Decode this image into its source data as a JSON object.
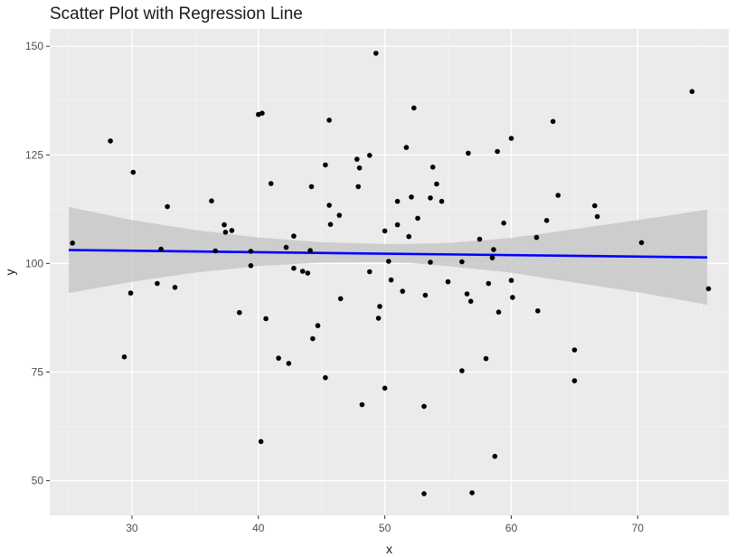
{
  "chart_data": {
    "type": "scatter",
    "title": "Scatter Plot with Regression Line",
    "xlabel": "x",
    "ylabel": "y",
    "xlim": [
      23.5,
      77.2
    ],
    "ylim": [
      42.0,
      154.0
    ],
    "x_ticks": [
      30,
      40,
      50,
      60,
      70
    ],
    "y_ticks": [
      50,
      75,
      100,
      125,
      150
    ],
    "grid": true,
    "legend": "none",
    "colors": {
      "panel_background": "#ebebeb",
      "grid_major": "#ffffff",
      "grid_minor": "#f5f5f5",
      "points": "#000000",
      "regression_line": "#0000ff",
      "confidence_band": "#c8c8c8"
    },
    "points": [
      {
        "x": 25.3,
        "y": 104.7
      },
      {
        "x": 28.3,
        "y": 128.2
      },
      {
        "x": 29.4,
        "y": 78.5
      },
      {
        "x": 29.9,
        "y": 93.2
      },
      {
        "x": 30.1,
        "y": 121.0
      },
      {
        "x": 32.0,
        "y": 95.4
      },
      {
        "x": 32.3,
        "y": 103.3
      },
      {
        "x": 32.8,
        "y": 113.1
      },
      {
        "x": 33.4,
        "y": 94.5
      },
      {
        "x": 36.3,
        "y": 114.4
      },
      {
        "x": 36.6,
        "y": 102.9
      },
      {
        "x": 37.3,
        "y": 108.9
      },
      {
        "x": 37.4,
        "y": 107.2
      },
      {
        "x": 37.9,
        "y": 107.6
      },
      {
        "x": 38.5,
        "y": 88.7
      },
      {
        "x": 39.4,
        "y": 99.5
      },
      {
        "x": 39.4,
        "y": 102.8
      },
      {
        "x": 40.0,
        "y": 134.3
      },
      {
        "x": 40.2,
        "y": 59.0
      },
      {
        "x": 40.3,
        "y": 134.6
      },
      {
        "x": 40.6,
        "y": 87.3
      },
      {
        "x": 41.0,
        "y": 118.4
      },
      {
        "x": 41.6,
        "y": 78.2
      },
      {
        "x": 42.2,
        "y": 103.7
      },
      {
        "x": 42.4,
        "y": 77.0
      },
      {
        "x": 42.8,
        "y": 106.3
      },
      {
        "x": 42.8,
        "y": 98.9
      },
      {
        "x": 43.5,
        "y": 98.2
      },
      {
        "x": 43.9,
        "y": 97.8
      },
      {
        "x": 44.1,
        "y": 103.0
      },
      {
        "x": 44.2,
        "y": 117.7
      },
      {
        "x": 44.3,
        "y": 82.7
      },
      {
        "x": 44.7,
        "y": 85.7
      },
      {
        "x": 45.3,
        "y": 122.7
      },
      {
        "x": 45.3,
        "y": 73.7
      },
      {
        "x": 45.6,
        "y": 133.0
      },
      {
        "x": 45.6,
        "y": 113.4
      },
      {
        "x": 45.7,
        "y": 109.0
      },
      {
        "x": 46.4,
        "y": 111.1
      },
      {
        "x": 46.5,
        "y": 91.9
      },
      {
        "x": 47.8,
        "y": 124.0
      },
      {
        "x": 47.9,
        "y": 117.7
      },
      {
        "x": 48.0,
        "y": 122.0
      },
      {
        "x": 48.2,
        "y": 67.5
      },
      {
        "x": 48.8,
        "y": 98.1
      },
      {
        "x": 48.8,
        "y": 124.9
      },
      {
        "x": 49.3,
        "y": 148.4
      },
      {
        "x": 49.5,
        "y": 87.4
      },
      {
        "x": 49.6,
        "y": 90.1
      },
      {
        "x": 50.0,
        "y": 107.5
      },
      {
        "x": 50.0,
        "y": 71.3
      },
      {
        "x": 50.3,
        "y": 100.5
      },
      {
        "x": 50.5,
        "y": 96.2
      },
      {
        "x": 51.0,
        "y": 108.9
      },
      {
        "x": 51.0,
        "y": 114.3
      },
      {
        "x": 51.4,
        "y": 93.6
      },
      {
        "x": 51.7,
        "y": 126.7
      },
      {
        "x": 51.9,
        "y": 106.2
      },
      {
        "x": 52.1,
        "y": 115.3
      },
      {
        "x": 52.3,
        "y": 135.8
      },
      {
        "x": 52.6,
        "y": 110.4
      },
      {
        "x": 53.1,
        "y": 67.1
      },
      {
        "x": 53.1,
        "y": 47.0
      },
      {
        "x": 53.2,
        "y": 92.7
      },
      {
        "x": 53.6,
        "y": 115.1
      },
      {
        "x": 53.6,
        "y": 100.3
      },
      {
        "x": 53.8,
        "y": 122.2
      },
      {
        "x": 54.1,
        "y": 118.3
      },
      {
        "x": 54.5,
        "y": 114.3
      },
      {
        "x": 55.0,
        "y": 95.8
      },
      {
        "x": 56.1,
        "y": 75.3
      },
      {
        "x": 56.1,
        "y": 100.4
      },
      {
        "x": 56.5,
        "y": 93.0
      },
      {
        "x": 56.6,
        "y": 125.4
      },
      {
        "x": 56.8,
        "y": 91.3
      },
      {
        "x": 56.9,
        "y": 47.2
      },
      {
        "x": 57.5,
        "y": 105.6
      },
      {
        "x": 58.0,
        "y": 78.1
      },
      {
        "x": 58.2,
        "y": 95.4
      },
      {
        "x": 58.5,
        "y": 101.3
      },
      {
        "x": 58.6,
        "y": 103.2
      },
      {
        "x": 58.7,
        "y": 55.6
      },
      {
        "x": 58.9,
        "y": 125.8
      },
      {
        "x": 59.0,
        "y": 88.8
      },
      {
        "x": 59.4,
        "y": 109.3
      },
      {
        "x": 60.0,
        "y": 128.8
      },
      {
        "x": 60.0,
        "y": 96.1
      },
      {
        "x": 60.1,
        "y": 92.2
      },
      {
        "x": 62.0,
        "y": 106.0
      },
      {
        "x": 62.1,
        "y": 89.1
      },
      {
        "x": 62.8,
        "y": 109.9
      },
      {
        "x": 63.3,
        "y": 132.7
      },
      {
        "x": 63.7,
        "y": 115.7
      },
      {
        "x": 65.0,
        "y": 80.1
      },
      {
        "x": 65.0,
        "y": 73.0
      },
      {
        "x": 66.6,
        "y": 113.3
      },
      {
        "x": 66.8,
        "y": 110.8
      },
      {
        "x": 70.3,
        "y": 104.8
      },
      {
        "x": 74.3,
        "y": 139.6
      },
      {
        "x": 75.6,
        "y": 94.2
      }
    ],
    "regression_line": {
      "x": [
        25.0,
        75.5
      ],
      "y": [
        103.1,
        101.4
      ]
    },
    "confidence_band": {
      "x": [
        25.0,
        30.0,
        35.0,
        40.0,
        45.0,
        50.0,
        52.0,
        55.0,
        60.0,
        65.0,
        70.0,
        75.5
      ],
      "lower": [
        93.2,
        95.8,
        97.9,
        99.4,
        100.2,
        100.3,
        100.1,
        99.4,
        97.9,
        95.6,
        93.4,
        90.5
      ],
      "upper": [
        113.0,
        110.0,
        107.7,
        106.0,
        104.9,
        104.5,
        104.5,
        104.7,
        105.9,
        107.9,
        110.0,
        112.4
      ]
    }
  }
}
